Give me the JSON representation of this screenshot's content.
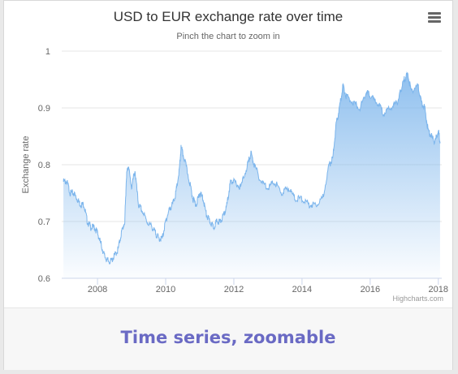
{
  "footer": {
    "caption": "Time series, zoomable"
  },
  "menu": {
    "icon": "hamburger-menu-icon"
  },
  "credits": "Highcharts.com",
  "colors": {
    "line": "#7cb5ec",
    "fill_top": "#7cb5ec",
    "fill_bottom": "#ffffff",
    "caption": "#6a6ac4",
    "grid": "#e6e6e6"
  },
  "chart_data": {
    "type": "area",
    "title": "USD to EUR exchange rate over time",
    "subtitle": "Pinch the chart to zoom in",
    "xlabel": "",
    "ylabel": "Exchange rate",
    "xlim": [
      2006.95,
      2018.1
    ],
    "ylim": [
      0.6,
      1.0
    ],
    "x_ticks": [
      "2008",
      "2010",
      "2012",
      "2014",
      "2016",
      "2018"
    ],
    "y_ticks": [
      "0.6",
      "0.7",
      "0.8",
      "0.9",
      "1"
    ],
    "grid": "horizontal",
    "legend": "none",
    "series": [
      {
        "x": [
          2007.0,
          2007.1,
          2007.2,
          2007.3,
          2007.4,
          2007.5,
          2007.6,
          2007.7,
          2007.8,
          2007.9,
          2008.0,
          2008.1,
          2008.2,
          2008.3,
          2008.4,
          2008.5,
          2008.6,
          2008.7,
          2008.8,
          2008.85,
          2008.9,
          2009.0,
          2009.1,
          2009.2,
          2009.3,
          2009.45,
          2009.6,
          2009.7,
          2009.8,
          2009.9,
          2010.0,
          2010.1,
          2010.2,
          2010.3,
          2010.4,
          2010.45,
          2010.55,
          2010.7,
          2010.8,
          2010.9,
          2011.0,
          2011.1,
          2011.2,
          2011.3,
          2011.4,
          2011.5,
          2011.6,
          2011.7,
          2011.8,
          2011.9,
          2012.0,
          2012.2,
          2012.4,
          2012.5,
          2012.6,
          2012.8,
          2013.0,
          2013.2,
          2013.4,
          2013.6,
          2013.8,
          2014.0,
          2014.2,
          2014.4,
          2014.6,
          2014.8,
          2014.9,
          2015.0,
          2015.1,
          2015.2,
          2015.3,
          2015.5,
          2015.7,
          2015.9,
          2016.0,
          2016.2,
          2016.4,
          2016.6,
          2016.8,
          2016.9,
          2017.0,
          2017.1,
          2017.2,
          2017.4,
          2017.5,
          2017.6,
          2017.7,
          2017.8,
          2017.9,
          2018.0,
          2018.05
        ],
        "values": [
          0.77,
          0.77,
          0.75,
          0.75,
          0.74,
          0.73,
          0.73,
          0.7,
          0.69,
          0.69,
          0.68,
          0.66,
          0.64,
          0.63,
          0.63,
          0.64,
          0.65,
          0.68,
          0.7,
          0.78,
          0.8,
          0.76,
          0.79,
          0.73,
          0.72,
          0.7,
          0.69,
          0.68,
          0.67,
          0.67,
          0.7,
          0.72,
          0.73,
          0.75,
          0.79,
          0.83,
          0.81,
          0.77,
          0.74,
          0.73,
          0.75,
          0.74,
          0.71,
          0.7,
          0.69,
          0.7,
          0.7,
          0.71,
          0.73,
          0.77,
          0.77,
          0.76,
          0.8,
          0.82,
          0.8,
          0.77,
          0.76,
          0.77,
          0.75,
          0.76,
          0.74,
          0.74,
          0.73,
          0.73,
          0.74,
          0.8,
          0.81,
          0.87,
          0.9,
          0.94,
          0.92,
          0.91,
          0.9,
          0.93,
          0.92,
          0.91,
          0.89,
          0.9,
          0.91,
          0.93,
          0.95,
          0.96,
          0.93,
          0.94,
          0.91,
          0.9,
          0.86,
          0.85,
          0.84,
          0.86,
          0.84
        ]
      }
    ]
  }
}
